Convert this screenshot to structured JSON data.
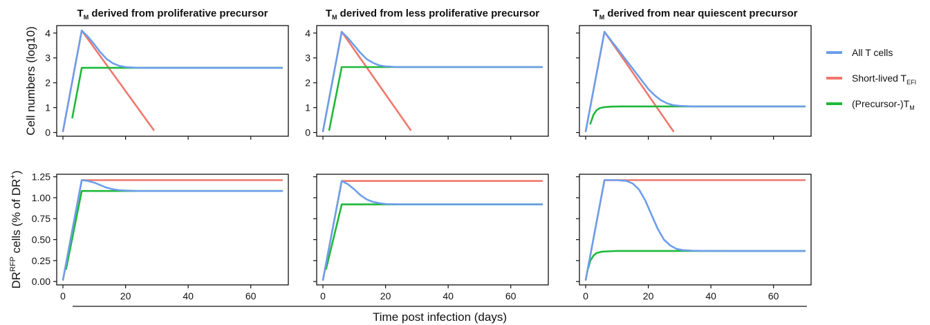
{
  "figure": {
    "row_ylabels": {
      "top": {
        "text": "Cell numbers (log10)",
        "sup": ""
      },
      "bottom": {
        "text": "DR",
        "sup": "RFP",
        "after": " cells (% of DR",
        "sup2": "+",
        "end": ")"
      }
    },
    "shared_xlabel": "Time post infection (days)",
    "legend": [
      {
        "label": "All T cells",
        "sub": "",
        "color": "#6d9eeb"
      },
      {
        "label": "Short-lived T",
        "sub": "EFI",
        "color": "#f0776c"
      },
      {
        "label": "(Precursor-)T",
        "sub": "M",
        "color": "#1db83a"
      }
    ],
    "colors": {
      "all": "#6d9eeb",
      "short": "#f0776c",
      "precursor": "#1db83a",
      "axis": "#111111"
    }
  },
  "chart_data": [
    {
      "type": "line",
      "title": {
        "prefix": "T",
        "sub": "M",
        "rest": " derived from proliferative precursor"
      },
      "xlim": [
        -2,
        72
      ],
      "ylim": [
        -0.15,
        4.3
      ],
      "xticks": [
        0,
        20,
        40,
        60
      ],
      "yticks": [
        0,
        1,
        2,
        3,
        4
      ],
      "ytick_labels": [
        "0",
        "1",
        "2",
        "3",
        "4"
      ],
      "series": [
        {
          "key": "short",
          "x": [
            0,
            6,
            29
          ],
          "y": [
            0.05,
            4.1,
            0.1
          ]
        },
        {
          "key": "precursor",
          "x": [
            3,
            6,
            70
          ],
          "y": [
            0.6,
            2.6,
            2.6
          ]
        },
        {
          "key": "all",
          "x": [
            0,
            6,
            8,
            10,
            12,
            14,
            16,
            18,
            20,
            24,
            30,
            70
          ],
          "y": [
            0.05,
            4.1,
            3.85,
            3.55,
            3.22,
            2.95,
            2.78,
            2.68,
            2.63,
            2.6,
            2.6,
            2.6
          ]
        }
      ]
    },
    {
      "type": "line",
      "title": {
        "prefix": "T",
        "sub": "M",
        "rest": " derived from less proliferative precursor"
      },
      "xlim": [
        -2,
        72
      ],
      "ylim": [
        -0.15,
        4.3
      ],
      "xticks": [
        0,
        20,
        40,
        60
      ],
      "yticks": [
        0,
        1,
        2,
        3,
        4
      ],
      "ytick_labels": [
        "0",
        "1",
        "2",
        "3",
        "4"
      ],
      "series": [
        {
          "key": "short",
          "x": [
            0,
            6,
            28
          ],
          "y": [
            0.05,
            4.05,
            0.1
          ]
        },
        {
          "key": "precursor",
          "x": [
            2,
            6,
            70
          ],
          "y": [
            0.1,
            2.63,
            2.63
          ]
        },
        {
          "key": "all",
          "x": [
            0,
            6,
            8,
            10,
            12,
            14,
            16,
            18,
            20,
            24,
            30,
            70
          ],
          "y": [
            0.05,
            4.05,
            3.8,
            3.5,
            3.2,
            2.95,
            2.8,
            2.7,
            2.66,
            2.63,
            2.63,
            2.63
          ]
        }
      ]
    },
    {
      "type": "line",
      "title": {
        "prefix": "T",
        "sub": "M",
        "rest": " derived from near quiescent precursor"
      },
      "xlim": [
        -2,
        72
      ],
      "ylim": [
        -0.15,
        4.3
      ],
      "xticks": [
        0,
        20,
        40,
        60
      ],
      "yticks": [
        0,
        1,
        2,
        3,
        4
      ],
      "ytick_labels": [
        "",
        "",
        "",
        "",
        ""
      ],
      "series": [
        {
          "key": "short",
          "x": [
            0,
            6,
            28
          ],
          "y": [
            0.05,
            4.05,
            0.05
          ]
        },
        {
          "key": "precursor",
          "x": [
            1.5,
            2.5,
            3.5,
            4.5,
            6,
            8,
            12,
            70
          ],
          "y": [
            0.35,
            0.72,
            0.9,
            0.98,
            1.02,
            1.04,
            1.05,
            1.05
          ]
        },
        {
          "key": "all",
          "x": [
            0,
            6,
            20,
            22,
            24,
            26,
            28,
            30,
            34,
            40,
            70
          ],
          "y": [
            0.05,
            4.05,
            1.75,
            1.5,
            1.3,
            1.17,
            1.1,
            1.07,
            1.05,
            1.05,
            1.05
          ]
        }
      ]
    },
    {
      "type": "line",
      "title": {
        "prefix": "",
        "sub": "",
        "rest": ""
      },
      "xlim": [
        -2,
        72
      ],
      "ylim": [
        -0.04,
        1.28
      ],
      "xticks": [
        0,
        20,
        40,
        60
      ],
      "yticks": [
        0,
        0.25,
        0.5,
        0.75,
        1.0,
        1.25
      ],
      "ytick_labels": [
        "0.00",
        "0.25",
        "0.50",
        "0.75",
        "1.00",
        "1.25"
      ],
      "xtick_labels": [
        "0",
        "20",
        "40",
        "60"
      ],
      "series": [
        {
          "key": "short",
          "x": [
            0,
            6,
            70
          ],
          "y": [
            0.02,
            1.21,
            1.21
          ]
        },
        {
          "key": "precursor",
          "x": [
            1,
            6,
            70
          ],
          "y": [
            0.15,
            1.08,
            1.08
          ]
        },
        {
          "key": "all",
          "x": [
            0,
            6,
            8,
            10,
            12,
            14,
            16,
            18,
            20,
            24,
            30,
            70
          ],
          "y": [
            0.02,
            1.21,
            1.2,
            1.18,
            1.15,
            1.12,
            1.1,
            1.09,
            1.085,
            1.08,
            1.08,
            1.08
          ]
        }
      ]
    },
    {
      "type": "line",
      "title": {
        "prefix": "",
        "sub": "",
        "rest": ""
      },
      "xlim": [
        -2,
        72
      ],
      "ylim": [
        -0.04,
        1.28
      ],
      "xticks": [
        0,
        20,
        40,
        60
      ],
      "yticks": [
        0,
        0.25,
        0.5,
        0.75,
        1.0,
        1.25
      ],
      "ytick_labels": [
        "",
        "",
        "",
        "",
        "",
        ""
      ],
      "xtick_labels": [
        "0",
        "20",
        "40",
        "60"
      ],
      "series": [
        {
          "key": "short",
          "x": [
            0,
            6,
            70
          ],
          "y": [
            0.02,
            1.2,
            1.2
          ]
        },
        {
          "key": "precursor",
          "x": [
            1,
            6,
            70
          ],
          "y": [
            0.15,
            0.92,
            0.92
          ]
        },
        {
          "key": "all",
          "x": [
            0,
            6,
            8,
            10,
            12,
            14,
            16,
            18,
            20,
            24,
            30,
            70
          ],
          "y": [
            0.02,
            1.2,
            1.16,
            1.1,
            1.03,
            0.98,
            0.95,
            0.935,
            0.925,
            0.92,
            0.92,
            0.92
          ]
        }
      ]
    },
    {
      "type": "line",
      "title": {
        "prefix": "",
        "sub": "",
        "rest": ""
      },
      "xlim": [
        -2,
        72
      ],
      "ylim": [
        -0.04,
        1.28
      ],
      "xticks": [
        0,
        20,
        40,
        60
      ],
      "yticks": [
        0,
        0.25,
        0.5,
        0.75,
        1.0,
        1.25
      ],
      "ytick_labels": [
        "",
        "",
        "",
        "",
        "",
        ""
      ],
      "xtick_labels": [
        "0",
        "20",
        "40",
        "60"
      ],
      "series": [
        {
          "key": "short",
          "x": [
            0,
            6,
            70
          ],
          "y": [
            0.02,
            1.21,
            1.21
          ]
        },
        {
          "key": "precursor",
          "x": [
            0.5,
            1.5,
            2.5,
            3.5,
            5,
            7,
            10,
            70
          ],
          "y": [
            0.12,
            0.25,
            0.31,
            0.34,
            0.355,
            0.36,
            0.365,
            0.365
          ]
        },
        {
          "key": "all",
          "x": [
            0,
            6,
            10,
            13,
            15,
            17,
            19,
            21,
            23,
            25,
            27,
            29,
            31,
            34,
            38,
            45,
            70
          ],
          "y": [
            0.02,
            1.21,
            1.21,
            1.2,
            1.17,
            1.1,
            0.97,
            0.8,
            0.63,
            0.5,
            0.43,
            0.39,
            0.375,
            0.368,
            0.366,
            0.365,
            0.365
          ]
        }
      ]
    }
  ]
}
